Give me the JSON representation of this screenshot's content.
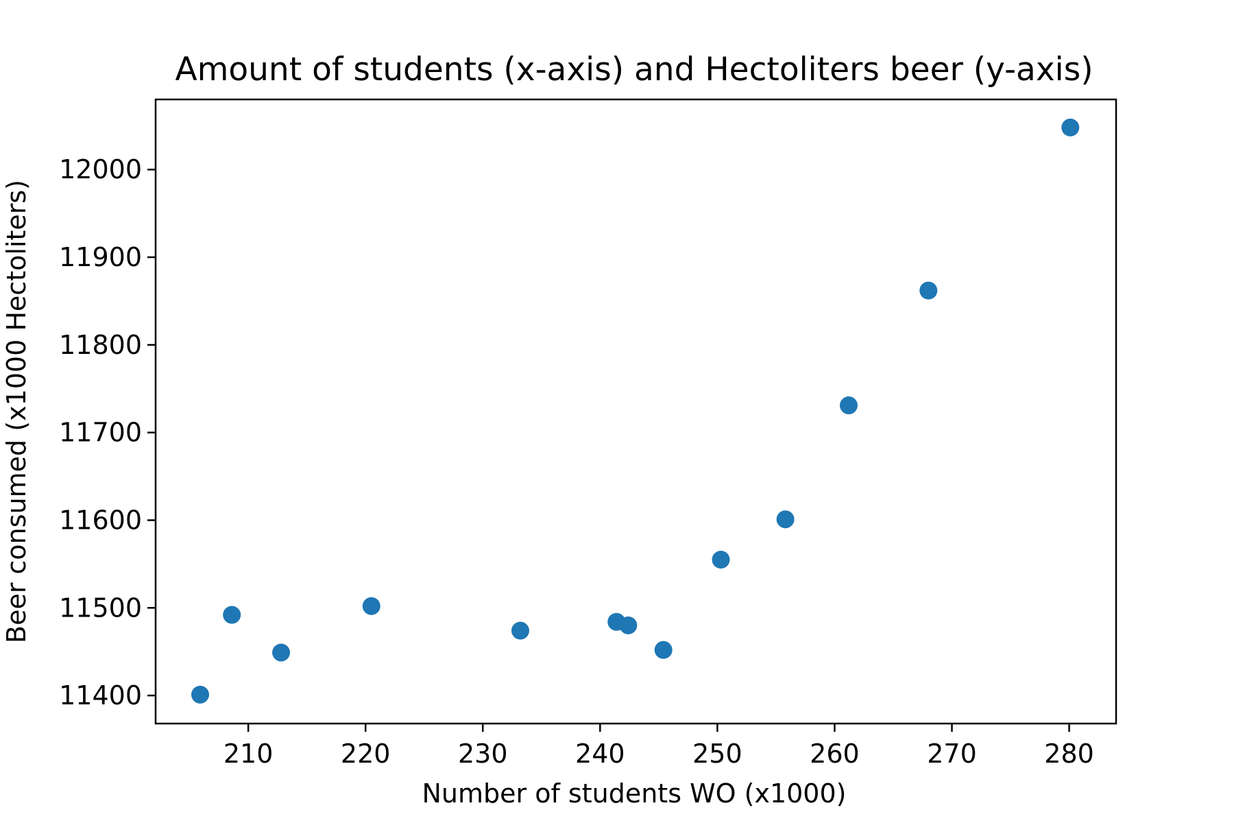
{
  "chart_data": {
    "type": "scatter",
    "title": "Amount of students (x-axis) and Hectoliters beer (y-axis)",
    "xlabel": "Number of students WO (x1000)",
    "ylabel": "Beer consumed (x1000 Hectoliters)",
    "xlim": [
      202.1,
      284.0
    ],
    "ylim": [
      11368,
      12080
    ],
    "xticks": [
      210,
      220,
      230,
      240,
      250,
      260,
      270,
      280
    ],
    "yticks": [
      11400,
      11500,
      11600,
      11700,
      11800,
      11900,
      12000
    ],
    "xtick_labels": [
      "210",
      "220",
      "230",
      "240",
      "250",
      "260",
      "270",
      "280"
    ],
    "ytick_labels": [
      "11400",
      "11500",
      "11600",
      "11700",
      "11800",
      "11900",
      "12000"
    ],
    "grid": false,
    "marker_color": "#1f77b4",
    "points": [
      {
        "x": 205.9,
        "y": 11401
      },
      {
        "x": 208.6,
        "y": 11492
      },
      {
        "x": 212.8,
        "y": 11449
      },
      {
        "x": 220.5,
        "y": 11502
      },
      {
        "x": 233.2,
        "y": 11474
      },
      {
        "x": 241.4,
        "y": 11484
      },
      {
        "x": 242.4,
        "y": 11480
      },
      {
        "x": 245.4,
        "y": 11452
      },
      {
        "x": 250.3,
        "y": 11555
      },
      {
        "x": 255.8,
        "y": 11601
      },
      {
        "x": 261.2,
        "y": 11731
      },
      {
        "x": 268.0,
        "y": 11862
      },
      {
        "x": 280.1,
        "y": 12048
      }
    ]
  }
}
